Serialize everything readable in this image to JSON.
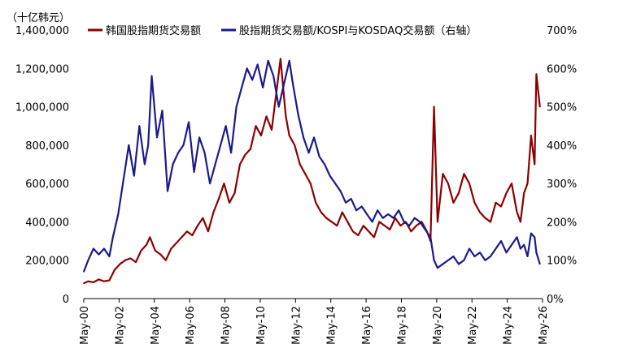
{
  "chart_data": {
    "type": "line",
    "unit_label": "（十亿韩元）",
    "legend_position": "top",
    "grid": false,
    "x_ticks": [
      "May-00",
      "May-02",
      "May-04",
      "May-06",
      "May-08",
      "May-10",
      "May-12",
      "May-14",
      "May-16",
      "May-18",
      "May-20",
      "May-22",
      "May-24",
      "May-26"
    ],
    "y_left": {
      "ylim": [
        0,
        1400000
      ],
      "ticks": [
        "0",
        "200,000",
        "400,000",
        "600,000",
        "800,000",
        "1,000,000",
        "1,200,000",
        "1,400,000"
      ]
    },
    "y_right": {
      "ylim": [
        0,
        700
      ],
      "ticks": [
        "0%",
        "100%",
        "200%",
        "300%",
        "400%",
        "500%",
        "600%",
        "700%"
      ]
    },
    "series": [
      {
        "name": "韩国股指期货交易额",
        "axis": "left",
        "color": "#8B0000",
        "x": [
          2000.35,
          2000.6,
          2000.9,
          2001.2,
          2001.5,
          2001.8,
          2002.1,
          2002.4,
          2002.7,
          2003.0,
          2003.3,
          2003.6,
          2003.9,
          2004.1,
          2004.4,
          2004.7,
          2005.0,
          2005.3,
          2005.6,
          2005.9,
          2006.2,
          2006.5,
          2006.8,
          2007.1,
          2007.4,
          2007.7,
          2008.0,
          2008.3,
          2008.6,
          2008.9,
          2009.2,
          2009.5,
          2009.8,
          2010.1,
          2010.4,
          2010.7,
          2011.0,
          2011.3,
          2011.5,
          2011.8,
          2012.0,
          2012.3,
          2012.6,
          2012.9,
          2013.2,
          2013.5,
          2013.8,
          2014.1,
          2014.4,
          2014.7,
          2015.0,
          2015.3,
          2015.6,
          2015.9,
          2016.2,
          2016.5,
          2016.8,
          2017.1,
          2017.4,
          2017.7,
          2018.0,
          2018.3,
          2018.6,
          2018.9,
          2019.2,
          2019.5,
          2019.8,
          2020.0,
          2020.2,
          2020.4,
          2020.7,
          2021.0,
          2021.3,
          2021.6,
          2021.9,
          2022.2,
          2022.5,
          2022.8,
          2023.1,
          2023.4,
          2023.7,
          2024.0,
          2024.3,
          2024.6,
          2024.9,
          2025.1,
          2025.3,
          2025.5,
          2025.7,
          2025.9,
          2026.0,
          2026.2
        ],
        "values": [
          80000,
          90000,
          85000,
          100000,
          90000,
          95000,
          150000,
          180000,
          200000,
          210000,
          190000,
          250000,
          280000,
          320000,
          250000,
          230000,
          200000,
          260000,
          290000,
          320000,
          350000,
          330000,
          380000,
          420000,
          350000,
          450000,
          520000,
          600000,
          500000,
          550000,
          700000,
          750000,
          780000,
          900000,
          850000,
          950000,
          880000,
          1100000,
          1250000,
          950000,
          850000,
          800000,
          700000,
          650000,
          600000,
          500000,
          450000,
          420000,
          400000,
          380000,
          450000,
          400000,
          350000,
          330000,
          380000,
          350000,
          320000,
          400000,
          380000,
          360000,
          420000,
          380000,
          400000,
          350000,
          380000,
          400000,
          350000,
          300000,
          1000000,
          400000,
          650000,
          600000,
          500000,
          550000,
          650000,
          600000,
          500000,
          450000,
          420000,
          400000,
          500000,
          480000,
          550000,
          600000,
          450000,
          400000,
          550000,
          600000,
          850000,
          700000,
          1170000,
          1000000
        ]
      },
      {
        "name": "股指期货交易额/KOSPI与KOSDAQ交易额（右轴）",
        "axis": "right",
        "color": "#1A1A8C",
        "x": [
          2000.35,
          2000.6,
          2000.9,
          2001.2,
          2001.5,
          2001.8,
          2002.0,
          2002.3,
          2002.6,
          2002.9,
          2003.2,
          2003.5,
          2003.8,
          2004.0,
          2004.2,
          2004.5,
          2004.8,
          2005.1,
          2005.4,
          2005.7,
          2006.0,
          2006.3,
          2006.6,
          2006.9,
          2007.2,
          2007.5,
          2007.8,
          2008.1,
          2008.4,
          2008.7,
          2009.0,
          2009.3,
          2009.6,
          2009.9,
          2010.2,
          2010.5,
          2010.8,
          2011.1,
          2011.4,
          2011.7,
          2012.0,
          2012.2,
          2012.5,
          2012.8,
          2013.1,
          2013.4,
          2013.7,
          2014.0,
          2014.3,
          2014.6,
          2014.9,
          2015.2,
          2015.5,
          2015.8,
          2016.1,
          2016.4,
          2016.7,
          2017.0,
          2017.3,
          2017.6,
          2017.9,
          2018.2,
          2018.5,
          2018.8,
          2019.1,
          2019.4,
          2019.7,
          2020.0,
          2020.2,
          2020.4,
          2020.7,
          2021.0,
          2021.3,
          2021.6,
          2021.9,
          2022.2,
          2022.5,
          2022.8,
          2023.1,
          2023.4,
          2023.7,
          2024.0,
          2024.3,
          2024.6,
          2024.9,
          2025.1,
          2025.3,
          2025.5,
          2025.7,
          2025.9,
          2026.0,
          2026.2
        ],
        "values": [
          70,
          100,
          130,
          115,
          130,
          110,
          160,
          220,
          310,
          400,
          320,
          450,
          350,
          400,
          580,
          420,
          490,
          280,
          350,
          380,
          400,
          460,
          330,
          420,
          380,
          300,
          350,
          400,
          450,
          380,
          500,
          550,
          600,
          570,
          610,
          550,
          620,
          580,
          500,
          560,
          620,
          560,
          480,
          420,
          380,
          420,
          370,
          350,
          320,
          300,
          280,
          250,
          260,
          230,
          240,
          220,
          200,
          230,
          210,
          220,
          210,
          230,
          200,
          190,
          210,
          200,
          180,
          160,
          100,
          80,
          90,
          100,
          110,
          90,
          100,
          130,
          110,
          120,
          100,
          110,
          130,
          150,
          120,
          140,
          160,
          130,
          140,
          110,
          170,
          160,
          120,
          90
        ]
      }
    ]
  }
}
